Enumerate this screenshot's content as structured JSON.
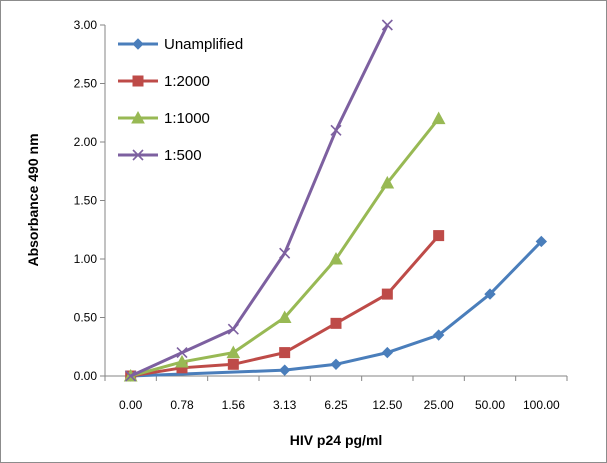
{
  "chart_data": {
    "type": "line",
    "xlabel": "HIV p24 pg/ml",
    "ylabel": "Absorbance 490 nm",
    "categories": [
      "0.00",
      "0.78",
      "1.56",
      "3.13",
      "6.25",
      "12.50",
      "25.00",
      "50.00",
      "100.00"
    ],
    "ylim": [
      0,
      3
    ],
    "yticks": [
      "0.00",
      "0.50",
      "1.00",
      "1.50",
      "2.00",
      "2.50",
      "3.00"
    ],
    "grid": false,
    "legend_position": "top-left",
    "series": [
      {
        "name": "Unamplified",
        "color": "#4a7ebb",
        "marker": "diamond",
        "values": [
          0.0,
          null,
          null,
          0.05,
          0.1,
          0.2,
          0.35,
          0.7,
          1.15
        ]
      },
      {
        "name": "1:2000",
        "color": "#be4b48",
        "marker": "square",
        "values": [
          0.0,
          0.07,
          0.1,
          0.2,
          0.45,
          0.7,
          1.2,
          null,
          null
        ]
      },
      {
        "name": "1:1000",
        "color": "#98b954",
        "marker": "triangle",
        "values": [
          0.0,
          0.12,
          0.2,
          0.5,
          1.0,
          1.65,
          2.2,
          null,
          null
        ]
      },
      {
        "name": "1:500",
        "color": "#7d60a0",
        "marker": "x",
        "values": [
          0.0,
          0.2,
          0.4,
          1.05,
          2.1,
          3.0,
          null,
          null,
          null
        ]
      }
    ]
  }
}
